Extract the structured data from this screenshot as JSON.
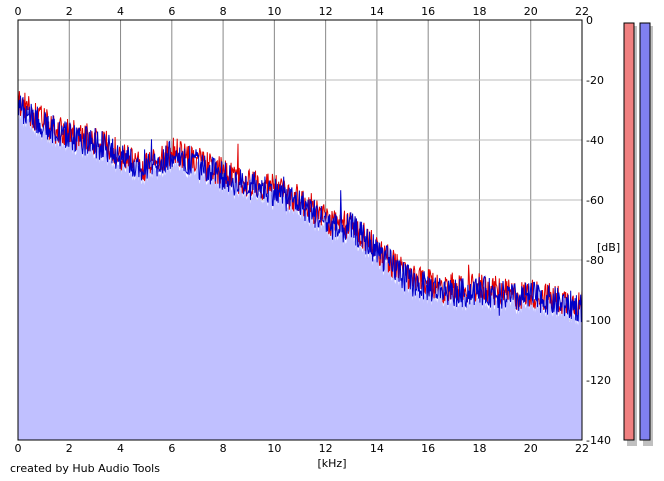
{
  "chart_data": {
    "type": "line",
    "xlabel": "[kHz]",
    "ylabel": "[dB]",
    "x_ticks": [
      "0",
      "2",
      "4",
      "6",
      "8",
      "10",
      "12",
      "14",
      "16",
      "18",
      "20",
      "22"
    ],
    "y_ticks": [
      "0",
      "-20",
      "-40",
      "-60",
      "-80",
      "-100",
      "-120",
      "-140"
    ],
    "xlim": [
      0,
      22
    ],
    "ylim": [
      -140,
      0
    ],
    "grid": true,
    "series": [
      {
        "color": "#e00000",
        "x": [
          0,
          0.5,
          1,
          1.5,
          2,
          2.5,
          3,
          3.5,
          4,
          4.5,
          5,
          5.5,
          6,
          6.5,
          7,
          7.5,
          8,
          8.5,
          9,
          9.5,
          10,
          10.5,
          11,
          11.5,
          12,
          12.5,
          13,
          13.5,
          14,
          14.5,
          15,
          15.5,
          16,
          16.5,
          17,
          17.5,
          18,
          18.5,
          19,
          19.5,
          20,
          20.5,
          21,
          21.5,
          22
        ],
        "values": [
          -27,
          -31,
          -34,
          -37,
          -38,
          -39,
          -40,
          -42,
          -45,
          -47,
          -49,
          -46,
          -44,
          -45,
          -47,
          -49,
          -51,
          -53,
          -54,
          -55,
          -56,
          -58,
          -60,
          -63,
          -66,
          -69,
          -68,
          -72,
          -76,
          -80,
          -84,
          -87,
          -88,
          -89,
          -90,
          -90,
          -89,
          -90,
          -91,
          -92,
          -91,
          -92,
          -93,
          -94,
          -95
        ]
      },
      {
        "color": "#0000c8",
        "x": [
          0,
          0.5,
          1,
          1.5,
          2,
          2.5,
          3,
          3.5,
          4,
          4.5,
          5,
          5.5,
          6,
          6.5,
          7,
          7.5,
          8,
          8.5,
          9,
          9.5,
          10,
          10.5,
          11,
          11.5,
          12,
          12.5,
          13,
          13.5,
          14,
          14.5,
          15,
          15.5,
          16,
          16.5,
          17,
          17.5,
          18,
          18.5,
          19,
          19.5,
          20,
          20.5,
          21,
          21.5,
          22
        ],
        "values": [
          -28,
          -32,
          -35,
          -37,
          -39,
          -40,
          -41,
          -43,
          -46,
          -48,
          -50,
          -47,
          -45,
          -46,
          -48,
          -50,
          -52,
          -54,
          -55,
          -56,
          -57,
          -59,
          -61,
          -64,
          -67,
          -70,
          -69,
          -73,
          -77,
          -81,
          -85,
          -88,
          -89,
          -90,
          -91,
          -91,
          -90,
          -91,
          -92,
          -93,
          -92,
          -93,
          -94,
          -95,
          -96
        ]
      }
    ],
    "level_meters": [
      {
        "color": "#f08080",
        "level": -140
      },
      {
        "color": "#8080f0",
        "level": -140
      }
    ],
    "fill_color": "#c0c0ff"
  },
  "footer": {
    "credit": "created by Hub Audio Tools"
  }
}
